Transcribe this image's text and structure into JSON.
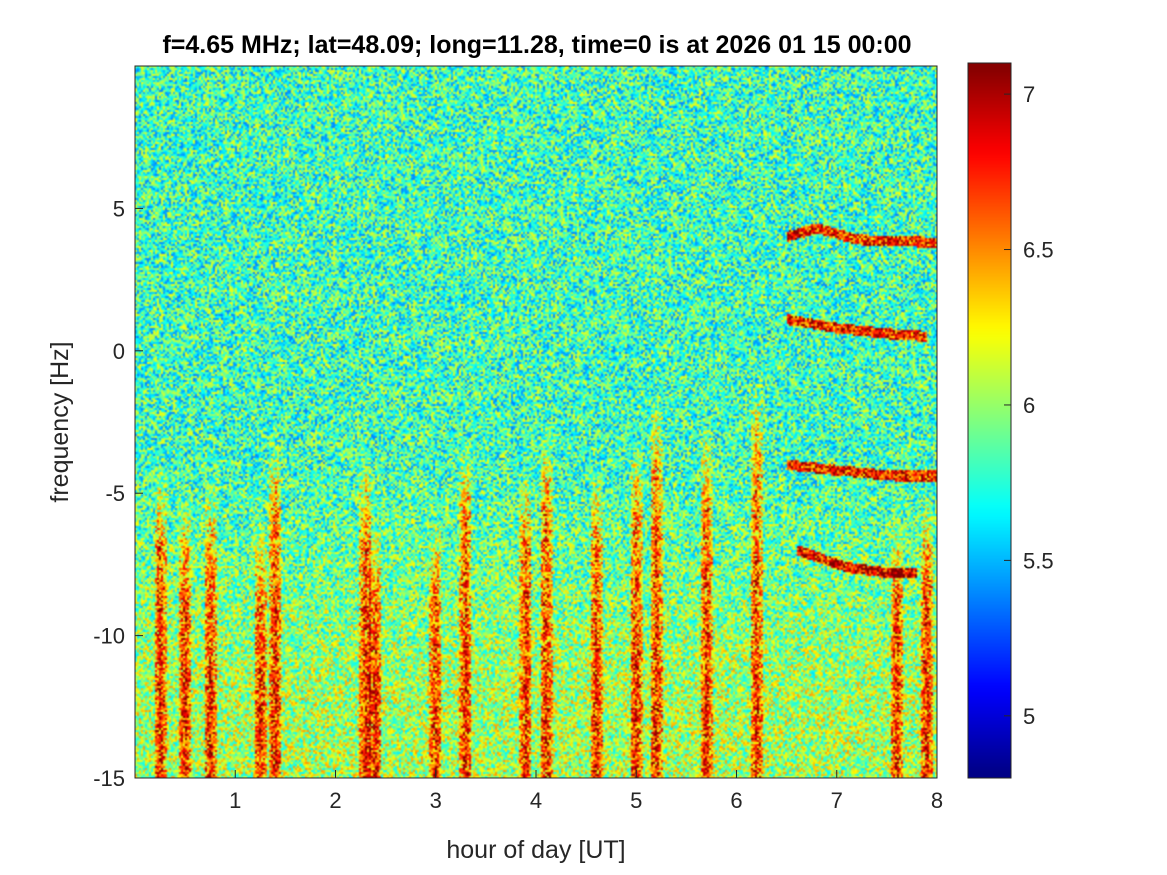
{
  "chart_data": {
    "type": "heatmap",
    "title": "f=4.65 MHz;  lat=48.09; long=11.28, time=0 is at 2026 01 15 00:00",
    "xlabel": "hour of day [UT]",
    "ylabel": "frequency [Hz]",
    "xlim": [
      0,
      8
    ],
    "ylim": [
      -15,
      10
    ],
    "xticks": [
      1,
      2,
      3,
      4,
      5,
      6,
      7,
      8
    ],
    "yticks": [
      -15,
      -10,
      -5,
      0,
      5
    ],
    "colormap": "jet",
    "colorbar": {
      "range": [
        4.8,
        7.1
      ],
      "ticks": [
        5,
        5.5,
        6,
        6.5,
        7
      ],
      "placement": "right"
    },
    "grid": false,
    "background_level": 5.8,
    "features": [
      {
        "kind": "vertical_streak",
        "x": 0.25,
        "y_range": [
          -15,
          -4
        ]
      },
      {
        "kind": "vertical_streak",
        "x": 0.5,
        "y_range": [
          -15,
          -5
        ]
      },
      {
        "kind": "vertical_streak",
        "x": 0.75,
        "y_range": [
          -15,
          -4.5
        ]
      },
      {
        "kind": "vertical_streak",
        "x": 1.25,
        "y_range": [
          -15,
          -6
        ]
      },
      {
        "kind": "vertical_streak",
        "x": 1.4,
        "y_range": [
          -15,
          -3
        ]
      },
      {
        "kind": "vertical_streak",
        "x": 2.3,
        "y_range": [
          -15,
          -3.5
        ]
      },
      {
        "kind": "vertical_streak",
        "x": 2.4,
        "y_range": [
          -15,
          -6
        ]
      },
      {
        "kind": "vertical_streak",
        "x": 3.0,
        "y_range": [
          -15,
          -6
        ]
      },
      {
        "kind": "vertical_streak",
        "x": 3.3,
        "y_range": [
          -15,
          -3
        ]
      },
      {
        "kind": "vertical_streak",
        "x": 3.9,
        "y_range": [
          -15,
          -4
        ]
      },
      {
        "kind": "vertical_streak",
        "x": 4.1,
        "y_range": [
          -15,
          -2.5
        ]
      },
      {
        "kind": "vertical_streak",
        "x": 4.6,
        "y_range": [
          -15,
          -4
        ]
      },
      {
        "kind": "vertical_streak",
        "x": 5.0,
        "y_range": [
          -15,
          -3
        ]
      },
      {
        "kind": "vertical_streak",
        "x": 5.2,
        "y_range": [
          -15,
          -1.5
        ]
      },
      {
        "kind": "vertical_streak",
        "x": 5.7,
        "y_range": [
          -15,
          -2.5
        ]
      },
      {
        "kind": "vertical_streak",
        "x": 6.2,
        "y_range": [
          -15,
          -1
        ]
      },
      {
        "kind": "vertical_streak",
        "x": 7.6,
        "y_range": [
          -15,
          -6
        ]
      },
      {
        "kind": "vertical_streak",
        "x": 7.9,
        "y_range": [
          -15,
          -5
        ]
      },
      {
        "kind": "trace",
        "points": [
          [
            6.5,
            4
          ],
          [
            6.8,
            4.3
          ],
          [
            7.2,
            3.9
          ],
          [
            8.0,
            3.8
          ]
        ]
      },
      {
        "kind": "trace",
        "points": [
          [
            6.5,
            1.1
          ],
          [
            7.0,
            0.8
          ],
          [
            7.5,
            0.6
          ],
          [
            7.9,
            0.5
          ]
        ]
      },
      {
        "kind": "trace",
        "points": [
          [
            6.5,
            -4.0
          ],
          [
            7.0,
            -4.2
          ],
          [
            7.6,
            -4.4
          ],
          [
            8.0,
            -4.4
          ]
        ]
      },
      {
        "kind": "trace",
        "points": [
          [
            6.6,
            -7.0
          ],
          [
            7.1,
            -7.6
          ],
          [
            7.5,
            -7.8
          ],
          [
            7.8,
            -7.8
          ]
        ]
      }
    ]
  }
}
